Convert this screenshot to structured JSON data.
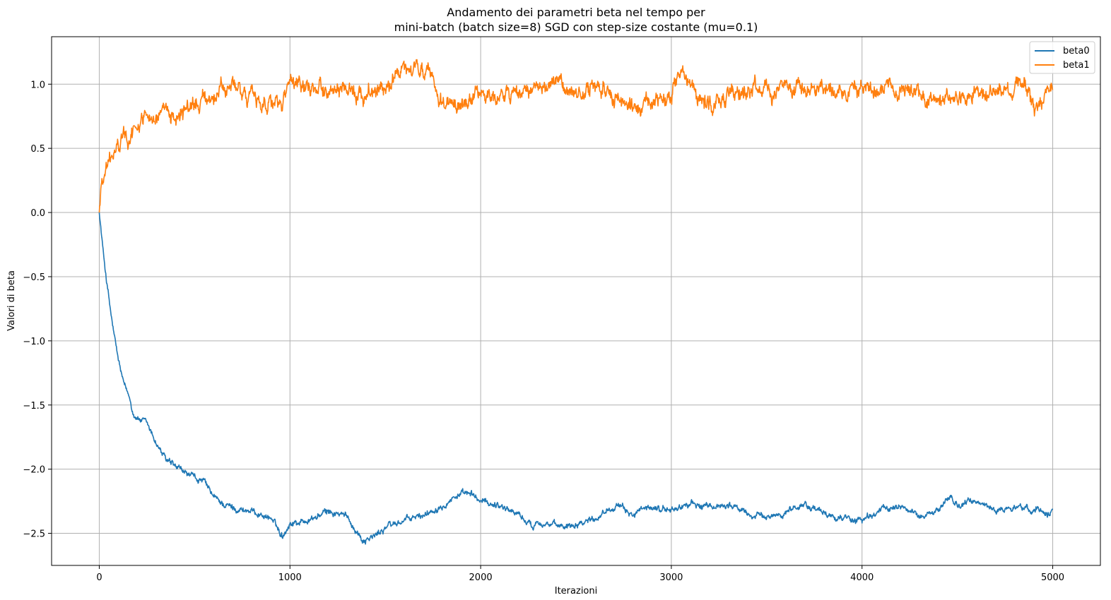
{
  "chart_data": {
    "type": "line",
    "title_line1": "Andamento dei parametri beta nel tempo per",
    "title_line2": "mini-batch (batch size=8) SGD con step-size costante (mu=0.1)",
    "xlabel": "Iterazioni",
    "ylabel": "Valori di beta",
    "xlim": [
      -250,
      5250
    ],
    "ylim": [
      -2.75,
      1.37
    ],
    "xticks": [
      0,
      1000,
      2000,
      3000,
      4000,
      5000
    ],
    "xtick_labels": [
      "0",
      "1000",
      "2000",
      "3000",
      "4000",
      "5000"
    ],
    "yticks": [
      -2.5,
      -2.0,
      -1.5,
      -1.0,
      -0.5,
      0.0,
      0.5,
      1.0
    ],
    "ytick_labels": [
      "−2.5",
      "−2.0",
      "−1.5",
      "−1.0",
      "−0.5",
      "0.0",
      "0.5",
      "1.0"
    ],
    "grid": true,
    "legend_position": "top-right",
    "series": [
      {
        "name": "beta0",
        "color": "#1f77b4",
        "anchors_x": [
          0,
          20,
          40,
          60,
          80,
          100,
          130,
          160,
          180,
          200,
          250,
          300,
          350,
          400,
          450,
          500,
          550,
          600,
          650,
          700,
          800,
          900,
          960,
          1000,
          1100,
          1200,
          1300,
          1380,
          1450,
          1500,
          1600,
          1700,
          1800,
          1880,
          1950,
          2000,
          2100,
          2200,
          2270,
          2300,
          2400,
          2500,
          2600,
          2700,
          2800,
          2900,
          3000,
          3100,
          3200,
          3300,
          3400,
          3500,
          3600,
          3700,
          3800,
          3900,
          4000,
          4100,
          4200,
          4300,
          4400,
          4450,
          4500,
          4600,
          4700,
          4800,
          4900,
          5000
        ],
        "anchors_y": [
          0.0,
          -0.3,
          -0.55,
          -0.78,
          -0.98,
          -1.15,
          -1.35,
          -1.45,
          -1.57,
          -1.6,
          -1.65,
          -1.8,
          -1.93,
          -1.99,
          -2.03,
          -2.07,
          -2.1,
          -2.22,
          -2.27,
          -2.3,
          -2.33,
          -2.38,
          -2.52,
          -2.42,
          -2.4,
          -2.33,
          -2.37,
          -2.55,
          -2.52,
          -2.45,
          -2.4,
          -2.36,
          -2.27,
          -2.2,
          -2.2,
          -2.25,
          -2.28,
          -2.35,
          -2.45,
          -2.4,
          -2.45,
          -2.42,
          -2.38,
          -2.28,
          -2.35,
          -2.3,
          -2.32,
          -2.27,
          -2.3,
          -2.27,
          -2.35,
          -2.38,
          -2.33,
          -2.27,
          -2.35,
          -2.38,
          -2.4,
          -2.32,
          -2.28,
          -2.37,
          -2.32,
          -2.22,
          -2.28,
          -2.25,
          -2.32,
          -2.3,
          -2.31,
          -2.33
        ],
        "noise": 0.018
      },
      {
        "name": "beta1",
        "color": "#ff7f0e",
        "anchors_x": [
          0,
          10,
          20,
          40,
          60,
          80,
          100,
          130,
          160,
          200,
          250,
          300,
          350,
          400,
          450,
          500,
          550,
          600,
          650,
          700,
          800,
          900,
          960,
          1000,
          1100,
          1200,
          1300,
          1400,
          1500,
          1550,
          1600,
          1650,
          1700,
          1750,
          1800,
          1850,
          1900,
          2000,
          2100,
          2200,
          2300,
          2400,
          2500,
          2600,
          2700,
          2800,
          2900,
          3000,
          3050,
          3100,
          3200,
          3300,
          3400,
          3500,
          3600,
          3700,
          3800,
          3900,
          4000,
          4100,
          4200,
          4300,
          4400,
          4500,
          4600,
          4700,
          4800,
          4850,
          4900,
          5000
        ],
        "anchors_y": [
          0.0,
          0.22,
          0.3,
          0.36,
          0.42,
          0.47,
          0.52,
          0.57,
          0.6,
          0.66,
          0.8,
          0.75,
          0.73,
          0.77,
          0.8,
          0.83,
          0.87,
          0.93,
          0.95,
          0.98,
          0.9,
          0.86,
          0.82,
          1.0,
          0.93,
          0.98,
          0.92,
          0.95,
          0.98,
          1.05,
          1.08,
          1.1,
          1.12,
          0.98,
          0.88,
          0.85,
          0.84,
          0.92,
          0.9,
          0.93,
          0.97,
          0.98,
          0.94,
          0.97,
          0.92,
          0.8,
          0.85,
          0.9,
          1.05,
          0.95,
          0.87,
          0.92,
          0.97,
          0.95,
          0.96,
          0.97,
          0.95,
          0.93,
          0.95,
          0.96,
          0.98,
          0.92,
          0.88,
          0.9,
          0.95,
          0.9,
          0.96,
          1.02,
          0.78,
          1.0
        ],
        "noise": 0.045
      }
    ]
  }
}
